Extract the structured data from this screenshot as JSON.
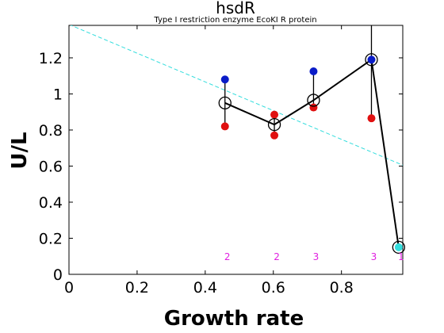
{
  "chart_data": {
    "type": "scatter",
    "title": "hsdR",
    "subtitle": "Type I restriction enzyme EcoKI R protein",
    "xlabel": "Growth rate",
    "ylabel": "U/L",
    "xlim": [
      0,
      0.98
    ],
    "ylim": [
      0,
      1.38
    ],
    "xticks": [
      0,
      0.2,
      0.4,
      0.6,
      0.8
    ],
    "xtick_labels": [
      "0",
      "0.2",
      "0.4",
      "0.6",
      "0.8"
    ],
    "yticks": [
      0,
      0.2,
      0.4,
      0.6,
      0.8,
      1.0,
      1.2
    ],
    "ytick_labels": [
      "0",
      "0.2",
      "0.4",
      "0.6",
      "0.8",
      "1",
      "1.2"
    ],
    "grid": false,
    "mean_series": {
      "x": [
        0.458,
        0.603,
        0.718,
        0.888,
        0.968
      ],
      "y": [
        0.95,
        0.83,
        0.965,
        1.19,
        0.15
      ]
    },
    "error_bars": [
      {
        "x": 0.458,
        "low": 0.82,
        "high": 1.08
      },
      {
        "x": 0.603,
        "low": 0.77,
        "high": 0.885
      },
      {
        "x": 0.718,
        "low": 0.925,
        "high": 1.125
      },
      {
        "x": 0.888,
        "low": 0.865,
        "high": 1.38
      }
    ],
    "blue_points": {
      "x": [
        0.458,
        0.718,
        0.888
      ],
      "y": [
        1.08,
        1.125,
        1.19
      ]
    },
    "red_points": {
      "x": [
        0.458,
        0.603,
        0.603,
        0.718,
        0.888
      ],
      "y": [
        0.82,
        0.77,
        0.885,
        0.925,
        0.865
      ]
    },
    "cyan_point": {
      "x": 0.968,
      "y": 0.15
    },
    "trend_line": {
      "x": [
        0,
        0.98
      ],
      "y": [
        1.385,
        0.605
      ]
    },
    "counts": [
      {
        "x": 0.458,
        "label": "2"
      },
      {
        "x": 0.603,
        "label": "2"
      },
      {
        "x": 0.718,
        "label": "3"
      },
      {
        "x": 0.888,
        "label": "3"
      },
      {
        "x": 0.968,
        "label": "1"
      }
    ],
    "colors": {
      "mean_line": "#000000",
      "blue": "#0a1cc8",
      "red": "#e01010",
      "cyan": "#33dddd",
      "trend": "#33dddd",
      "count_label": "#e020e0"
    }
  }
}
